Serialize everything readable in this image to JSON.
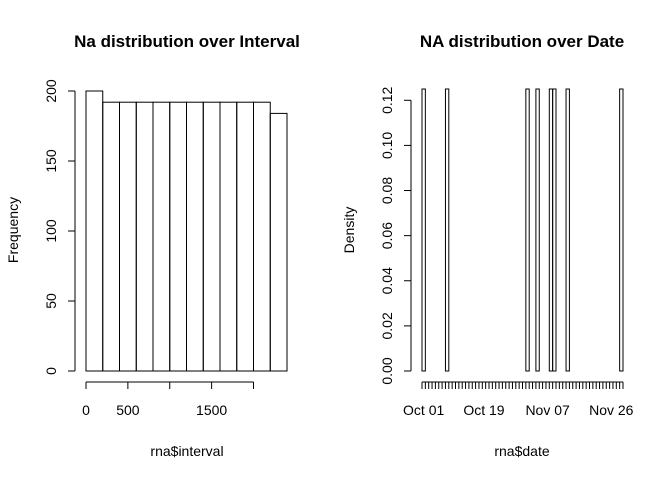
{
  "chart_data": [
    {
      "type": "bar",
      "subtype": "histogram",
      "title": "Na distribution over Interval",
      "xlabel": "rna$interval",
      "ylabel": "Frequency",
      "bin_edges": [
        0,
        200,
        400,
        600,
        800,
        1000,
        1200,
        1400,
        1600,
        1800,
        2000,
        2200,
        2400
      ],
      "values": [
        200,
        192,
        192,
        192,
        192,
        192,
        192,
        192,
        192,
        192,
        192,
        184
      ],
      "xlim": [
        0,
        2400
      ],
      "ylim": [
        0,
        200
      ],
      "x_ticks": [
        0,
        500,
        1000,
        1500,
        2000
      ],
      "x_tick_labels": [
        "0",
        "500",
        "",
        "1500",
        ""
      ],
      "y_ticks": [
        0,
        50,
        100,
        150,
        200
      ],
      "y_tick_labels": [
        "0",
        "50",
        "100",
        "150",
        "200"
      ],
      "grid": false
    },
    {
      "type": "bar",
      "subtype": "histogram",
      "title": "NA distribution over Date",
      "xlabel": "rna$date",
      "ylabel": "Density",
      "bin_edges": [
        "Oct 01",
        "Oct 02",
        "Oct 03",
        "Oct 04",
        "Oct 05",
        "Oct 06",
        "Oct 07",
        "Oct 08",
        "Oct 09",
        "Oct 10",
        "Oct 11",
        "Oct 12",
        "Oct 13",
        "Oct 14",
        "Oct 15",
        "Oct 16",
        "Oct 17",
        "Oct 18",
        "Oct 19",
        "Oct 20",
        "Oct 21",
        "Oct 22",
        "Oct 23",
        "Oct 24",
        "Oct 25",
        "Oct 26",
        "Oct 27",
        "Oct 28",
        "Oct 29",
        "Oct 30",
        "Oct 31",
        "Nov 01",
        "Nov 02",
        "Nov 03",
        "Nov 04",
        "Nov 05",
        "Nov 06",
        "Nov 07",
        "Nov 08",
        "Nov 09",
        "Nov 10",
        "Nov 11",
        "Nov 12",
        "Nov 13",
        "Nov 14",
        "Nov 15",
        "Nov 16",
        "Nov 17",
        "Nov 18",
        "Nov 19",
        "Nov 20",
        "Nov 21",
        "Nov 22",
        "Nov 23",
        "Nov 24",
        "Nov 25",
        "Nov 26",
        "Nov 27",
        "Nov 28",
        "Nov 29",
        "Nov 30"
      ],
      "values": [
        0.125,
        0,
        0,
        0,
        0,
        0,
        0,
        0.125,
        0,
        0,
        0,
        0,
        0,
        0,
        0,
        0,
        0,
        0,
        0,
        0,
        0,
        0,
        0,
        0,
        0,
        0,
        0,
        0,
        0,
        0,
        0,
        0.125,
        0,
        0,
        0.125,
        0,
        0,
        0,
        0.125,
        0.125,
        0,
        0,
        0,
        0.125,
        0,
        0,
        0,
        0,
        0,
        0,
        0,
        0,
        0,
        0,
        0,
        0,
        0,
        0,
        0,
        0.125
      ],
      "ylim": [
        0,
        0.125
      ],
      "x_tick_labels": [
        "Oct 01",
        "Oct 19",
        "Nov 07",
        "Nov 26"
      ],
      "x_tick_label_positions": [
        "Oct 01",
        "Oct 19",
        "Nov 07",
        "Nov 26"
      ],
      "y_ticks": [
        0,
        0.02,
        0.04,
        0.06,
        0.08,
        0.1,
        0.12
      ],
      "y_tick_labels": [
        "0.00",
        "0.02",
        "0.04",
        "0.06",
        "0.08",
        "0.10",
        "0.12"
      ],
      "grid": false
    }
  ]
}
